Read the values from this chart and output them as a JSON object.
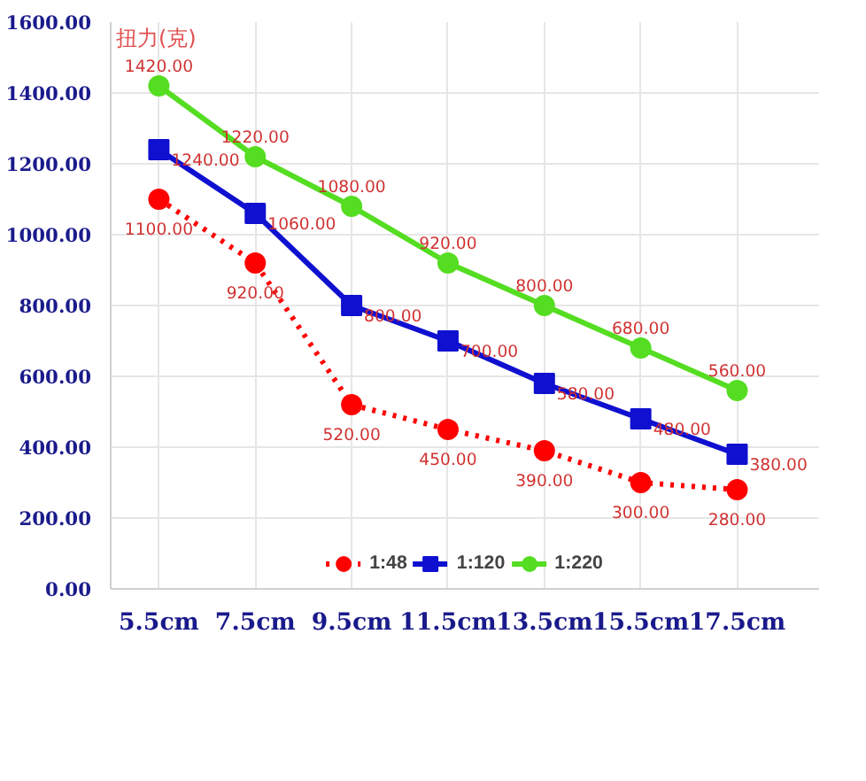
{
  "chart_data": {
    "type": "line",
    "ylabel": "扭力(克)",
    "categories": [
      "5.5cm",
      "7.5cm",
      "9.5cm",
      "11.5cm",
      "13.5cm",
      "15.5cm",
      "17.5cm"
    ],
    "series": [
      {
        "name": "1:48",
        "color": "#ff0000",
        "line_style": "dotted",
        "marker": "circle",
        "values": [
          1100,
          920,
          520,
          450,
          390,
          300,
          280
        ],
        "value_labels": [
          "1100.00",
          "920.00",
          "520.00",
          "450.00",
          "390.00",
          "300.00",
          "280.00"
        ]
      },
      {
        "name": "1:120",
        "color": "#1010d0",
        "line_style": "solid",
        "marker": "square",
        "values": [
          1240,
          1060,
          800,
          700,
          580,
          480,
          380
        ],
        "value_labels": [
          "1240.00",
          "1060.00",
          "800.00",
          "700.00",
          "580.00",
          "480.00",
          "380.00"
        ]
      },
      {
        "name": "1:220",
        "color": "#55dd22",
        "line_style": "solid",
        "marker": "circle",
        "values": [
          1420,
          1220,
          1080,
          920,
          800,
          680,
          560
        ],
        "value_labels": [
          "1420.00",
          "1220.00",
          "1080.00",
          "920.00",
          "800.00",
          "680.00",
          "560.00"
        ]
      }
    ],
    "ylim": [
      0,
      1600
    ],
    "yticks": [
      {
        "value": 0,
        "label": "0.00"
      },
      {
        "value": 200,
        "label": "200.00"
      },
      {
        "value": 400,
        "label": "400.00"
      },
      {
        "value": 600,
        "label": "600.00"
      },
      {
        "value": 800,
        "label": "800.00"
      },
      {
        "value": 1000,
        "label": "1000.00"
      },
      {
        "value": 1200,
        "label": "1200.00"
      },
      {
        "value": 1400,
        "label": "1400.00"
      },
      {
        "value": 1600,
        "label": "1600.00"
      }
    ],
    "grid": true,
    "legend": "bottom"
  }
}
